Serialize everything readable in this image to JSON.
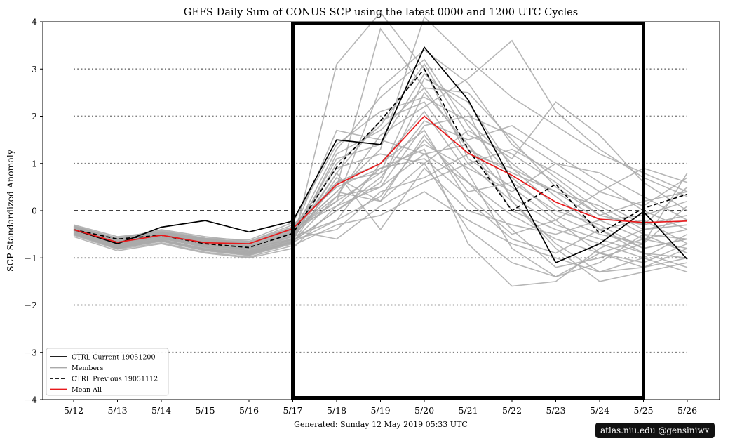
{
  "chart_data": {
    "type": "line",
    "title": "GEFS Daily Sum of CONUS SCP using the latest 0000 and 1200 UTC Cycles",
    "xlabel": "Generated: Sunday  12  May  2019  05:33 UTC",
    "ylabel": "SCP Standardized Anomaly",
    "ylim": [
      -4,
      4
    ],
    "yticks": [
      "−4",
      "−3",
      "−2",
      "−1",
      "0",
      "1",
      "2",
      "3",
      "4"
    ],
    "categories": [
      "5/12",
      "5/13",
      "5/14",
      "5/15",
      "5/16",
      "5/17",
      "5/18",
      "5/19",
      "5/20",
      "5/21",
      "5/22",
      "5/23",
      "5/24",
      "5/25",
      "5/26"
    ],
    "reference_lines": [
      -3,
      -2,
      -1,
      1,
      2,
      3
    ],
    "zero_line": 0,
    "highlight_window": [
      "5/17",
      "5/25"
    ],
    "legend_position": "lower-left",
    "series": [
      {
        "name": "CTRL Current  19051200",
        "style": "solid",
        "color": "#000000",
        "values": [
          -0.4,
          -0.7,
          -0.35,
          -0.21,
          -0.45,
          -0.22,
          1.5,
          1.4,
          3.46,
          2.35,
          0.62,
          -1.1,
          -0.7,
          -0.02,
          -1.03
        ]
      },
      {
        "name": "CTRL Previous  19051112",
        "style": "dashed",
        "color": "#000000",
        "values": [
          -0.4,
          -0.6,
          -0.52,
          -0.7,
          -0.78,
          -0.48,
          0.92,
          1.9,
          3.0,
          1.3,
          0.0,
          0.56,
          -0.48,
          0.05,
          0.35
        ]
      },
      {
        "name": "Mean All",
        "style": "solid",
        "color": "#e8191b",
        "values": [
          -0.4,
          -0.67,
          -0.52,
          -0.68,
          -0.7,
          -0.38,
          0.55,
          1.0,
          2.0,
          1.22,
          0.75,
          0.18,
          -0.18,
          -0.25,
          -0.22
        ]
      }
    ],
    "members": {
      "name": "Members",
      "color": "#a9a9a9",
      "values": [
        [
          -0.3,
          -0.55,
          -0.45,
          -0.6,
          -0.7,
          -0.4,
          0.2,
          0.8,
          2.8,
          2.3,
          0.9,
          0.1,
          -0.4,
          -0.8,
          -0.6
        ],
        [
          -0.4,
          -0.7,
          -0.55,
          -0.75,
          -0.8,
          -0.6,
          1.0,
          1.8,
          3.1,
          1.6,
          1.2,
          0.6,
          -0.1,
          -0.3,
          0.5
        ],
        [
          -0.5,
          -0.8,
          -0.65,
          -0.85,
          -0.95,
          -0.7,
          3.1,
          4.2,
          3.0,
          1.1,
          0.5,
          -0.2,
          -0.9,
          -1.2,
          -0.8
        ],
        [
          -0.35,
          -0.6,
          -0.4,
          -0.55,
          -0.65,
          -0.3,
          0.5,
          3.85,
          2.6,
          1.3,
          0.8,
          0.4,
          0.1,
          -0.4,
          -0.2
        ],
        [
          -0.45,
          -0.75,
          -0.6,
          -0.7,
          -0.85,
          -0.55,
          -0.2,
          0.3,
          1.5,
          0.6,
          -0.1,
          -0.6,
          -0.9,
          -1.1,
          -0.7
        ],
        [
          -0.38,
          -0.65,
          -0.5,
          -0.65,
          -0.75,
          -0.45,
          0.4,
          1.3,
          4.1,
          3.2,
          2.4,
          1.8,
          1.2,
          0.8,
          0.4
        ],
        [
          -0.55,
          -0.85,
          -0.7,
          -0.9,
          -1.0,
          -0.8,
          0.1,
          0.9,
          1.3,
          -0.7,
          -1.6,
          -1.5,
          -0.8,
          -0.4,
          -0.3
        ],
        [
          -0.42,
          -0.72,
          -0.58,
          -0.78,
          -0.88,
          -0.62,
          0.8,
          -0.4,
          0.9,
          0.0,
          -0.3,
          -0.5,
          -0.2,
          -0.1,
          0.2
        ],
        [
          -0.32,
          -0.58,
          -0.42,
          -0.58,
          -0.62,
          -0.25,
          1.4,
          2.1,
          2.4,
          1.9,
          1.0,
          0.3,
          -0.4,
          -0.9,
          -1.0
        ],
        [
          -0.48,
          -0.78,
          -0.62,
          -0.82,
          -0.92,
          -0.66,
          0.3,
          0.5,
          1.8,
          2.0,
          1.6,
          1.0,
          0.4,
          0.1,
          0.7
        ],
        [
          -0.36,
          -0.62,
          -0.48,
          -0.62,
          -0.72,
          -0.42,
          -0.6,
          0.1,
          0.6,
          1.0,
          0.2,
          -0.7,
          -1.3,
          -1.0,
          -0.5
        ],
        [
          -0.44,
          -0.74,
          -0.56,
          -0.74,
          -0.86,
          -0.58,
          0.6,
          1.0,
          2.1,
          0.8,
          -0.8,
          -1.4,
          -0.9,
          -0.6,
          -0.4
        ],
        [
          -0.4,
          -0.68,
          -0.52,
          -0.68,
          -0.78,
          -0.48,
          0.2,
          2.6,
          3.4,
          2.7,
          1.4,
          0.7,
          0.0,
          -0.5,
          -0.9
        ],
        [
          -0.52,
          -0.82,
          -0.68,
          -0.88,
          -0.98,
          -0.74,
          -0.3,
          -0.1,
          0.4,
          -0.2,
          -0.7,
          -1.0,
          -1.3,
          -1.2,
          -1.0
        ],
        [
          -0.34,
          -0.6,
          -0.46,
          -0.6,
          -0.68,
          -0.36,
          0.9,
          1.2,
          1.0,
          1.7,
          1.1,
          2.3,
          1.6,
          0.6,
          0.0
        ],
        [
          -0.46,
          -0.76,
          -0.62,
          -0.8,
          -0.9,
          -0.64,
          0.0,
          0.6,
          2.5,
          1.4,
          0.3,
          -0.3,
          -0.6,
          -0.9,
          -1.2
        ],
        [
          -0.39,
          -0.66,
          -0.5,
          -0.66,
          -0.76,
          -0.46,
          1.7,
          1.5,
          1.2,
          0.6,
          -0.4,
          -1.2,
          -1.0,
          -0.7,
          0.1
        ],
        [
          -0.5,
          -0.8,
          -0.64,
          -0.84,
          -0.94,
          -0.68,
          0.7,
          0.2,
          1.6,
          0.4,
          0.6,
          0.0,
          -0.3,
          -0.8,
          -0.6
        ],
        [
          -0.37,
          -0.64,
          -0.49,
          -0.64,
          -0.74,
          -0.44,
          0.3,
          1.6,
          2.2,
          2.8,
          3.6,
          2.1,
          1.3,
          0.7,
          0.3
        ],
        [
          -0.43,
          -0.73,
          -0.57,
          -0.76,
          -0.87,
          -0.6,
          -0.4,
          0.4,
          0.7,
          1.2,
          0.9,
          0.4,
          -0.2,
          -0.6,
          -0.8
        ],
        [
          -0.41,
          -0.7,
          -0.54,
          -0.72,
          -0.82,
          -0.52,
          1.1,
          1.4,
          2.9,
          2.1,
          0.2,
          -0.8,
          -1.5,
          -1.3,
          -1.1
        ],
        [
          -0.33,
          -0.59,
          -0.44,
          -0.59,
          -0.66,
          -0.34,
          0.5,
          0.9,
          1.1,
          0.3,
          -0.5,
          -0.2,
          0.4,
          0.9,
          0.6
        ],
        [
          -0.47,
          -0.77,
          -0.61,
          -0.81,
          -0.91,
          -0.65,
          0.0,
          0.7,
          1.9,
          1.5,
          1.8,
          1.2,
          0.6,
          0.0,
          -0.4
        ],
        [
          -0.4,
          -0.69,
          -0.53,
          -0.7,
          -0.8,
          -0.5,
          1.3,
          2.4,
          3.2,
          1.8,
          0.7,
          -0.1,
          -0.5,
          -0.7,
          0.8
        ],
        [
          -0.36,
          -0.63,
          -0.47,
          -0.63,
          -0.71,
          -0.4,
          0.6,
          0.8,
          1.4,
          0.9,
          0.4,
          1.0,
          0.8,
          0.3,
          -0.2
        ],
        [
          -0.49,
          -0.79,
          -0.63,
          -0.83,
          -0.93,
          -0.67,
          -0.2,
          1.0,
          1.7,
          0.2,
          -0.6,
          -0.9,
          -0.4,
          -0.2,
          -0.7
        ],
        [
          -0.42,
          -0.71,
          -0.55,
          -0.73,
          -0.84,
          -0.54,
          0.8,
          1.9,
          2.3,
          1.0,
          1.3,
          0.8,
          0.2,
          -0.3,
          -0.1
        ],
        [
          -0.38,
          -0.66,
          -0.51,
          -0.67,
          -0.77,
          -0.47,
          0.4,
          0.2,
          1.0,
          -0.4,
          -1.1,
          -1.4,
          -1.1,
          -0.5,
          -0.6
        ],
        [
          -0.45,
          -0.75,
          -0.59,
          -0.77,
          -0.89,
          -0.61,
          1.2,
          1.7,
          2.6,
          2.5,
          1.5,
          0.5,
          -0.1,
          0.2,
          0.4
        ],
        [
          -0.35,
          -0.62,
          -0.47,
          -0.61,
          -0.69,
          -0.38,
          0.1,
          0.5,
          1.2,
          1.4,
          0.0,
          -0.4,
          -0.7,
          -1.0,
          -1.3
        ]
      ]
    }
  },
  "credit": "atlas.niu.edu  @gensiniwx"
}
